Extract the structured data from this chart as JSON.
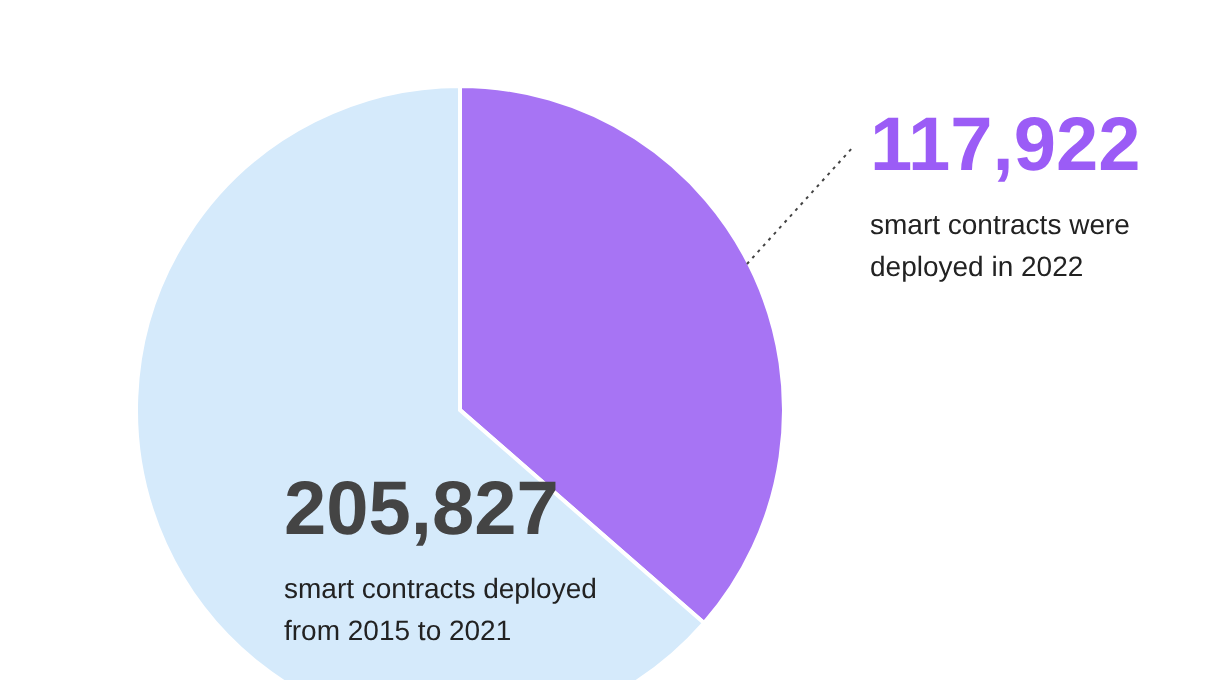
{
  "chart_data": {
    "type": "pie",
    "categories": [
      "smart contracts were deployed in 2022",
      "smart contracts deployed from 2015 to 2021"
    ],
    "values": [
      117922,
      205827
    ],
    "value_labels": [
      "117,922",
      "205,827"
    ],
    "colors": [
      "#a774f4",
      "#d5eafb"
    ]
  }
}
